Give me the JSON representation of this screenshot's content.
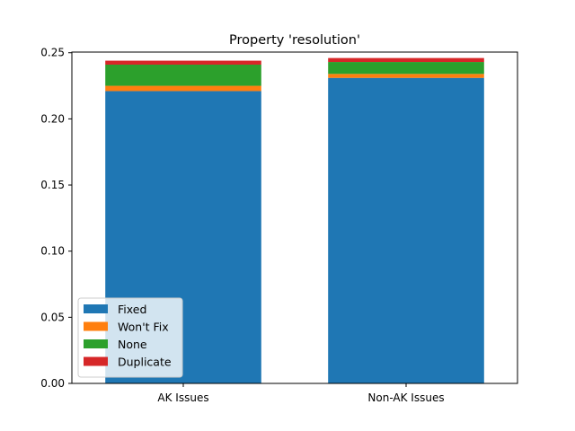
{
  "chart_data": {
    "type": "bar",
    "stacked": true,
    "title": "Property 'resolution'",
    "xlabel": "",
    "ylabel": "",
    "categories": [
      "AK Issues",
      "Non-AK Issues"
    ],
    "ylim": [
      0,
      0.25
    ],
    "yticks": [
      "0.00",
      "0.05",
      "0.10",
      "0.15",
      "0.20",
      "0.25"
    ],
    "grid": false,
    "legend_position": "lower-left",
    "series": [
      {
        "name": "Fixed",
        "color": "#1f77b4",
        "values": [
          0.221,
          0.231
        ]
      },
      {
        "name": "Won't Fix",
        "color": "#ff7f0e",
        "values": [
          0.004,
          0.003
        ]
      },
      {
        "name": "None",
        "color": "#2ca02c",
        "values": [
          0.016,
          0.009
        ]
      },
      {
        "name": "Duplicate",
        "color": "#d62728",
        "values": [
          0.003,
          0.003
        ]
      }
    ]
  }
}
